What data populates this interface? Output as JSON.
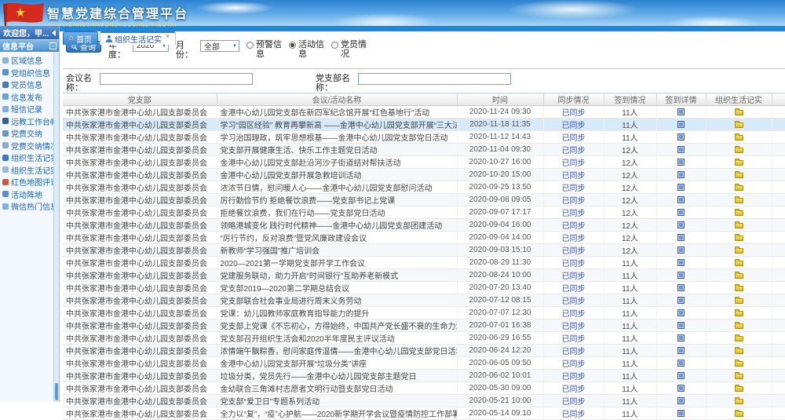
{
  "banner": {
    "title": "智慧党建综合管理平台",
    "subtitle": "ZHIHUIDANGJIANZONGHEGUANLIPINGTAI"
  },
  "colors": {
    "accent_blue": "#1e87d8",
    "link_blue": "#3952b8",
    "flag_red": "#d42b1e",
    "gold_star": "#ffd94a",
    "selected_row": "#d7eaf9"
  },
  "icons": {
    "home_tab_glyph": "⌂",
    "close_tab_glyph": "×",
    "select_arrow_glyph": "▼"
  },
  "sidebar": {
    "welcome": "欢迎您，甲...",
    "section_title": "信息平台",
    "items": [
      {
        "id": "region-info",
        "icon": "region-icon",
        "label": "区域信息"
      },
      {
        "id": "party-org-info",
        "icon": "org-icon",
        "label": "党组织信息"
      },
      {
        "id": "party-member-info",
        "icon": "member-icon",
        "label": "党员信息"
      },
      {
        "id": "info-publish",
        "icon": "publish-icon",
        "label": "信息发布"
      },
      {
        "id": "sms-record",
        "icon": "sms-icon",
        "label": "短信记录"
      },
      {
        "id": "distance-edu-ledger",
        "icon": "education-icon",
        "label": "远教工作台帐"
      },
      {
        "id": "party-fee-pay",
        "icon": "fee-icon",
        "label": "党费交纳"
      },
      {
        "id": "party-fee-status",
        "icon": "fee-status-icon",
        "label": "党费交纳情况"
      },
      {
        "id": "org-life-record",
        "icon": "org-life-icon",
        "label": "组织生活记实"
      },
      {
        "id": "org-life-record-preview",
        "icon": "org-life-preview-icon",
        "label": "组织生活记实预"
      },
      {
        "id": "red-map-comment",
        "icon": "red-map-icon",
        "label": "红色地图评论"
      },
      {
        "id": "activity-site",
        "icon": "activity-site-icon",
        "label": "活动阵地"
      },
      {
        "id": "wechat-hot-info",
        "icon": "wechat-icon",
        "label": "微信热门信息"
      }
    ]
  },
  "tabs": [
    {
      "label": "首页",
      "active": false
    },
    {
      "label": "组织生活记实",
      "active": true
    }
  ],
  "filters": {
    "search_button": "查询",
    "year_label_lines": [
      "年",
      "度："
    ],
    "year_value": "2020",
    "month_label_lines": [
      "月",
      "份："
    ],
    "month_value": "全部",
    "radios": [
      {
        "label_lines": [
          "预警信",
          "息"
        ],
        "checked": false
      },
      {
        "label_lines": [
          "活动信",
          "息"
        ],
        "checked": true
      },
      {
        "label_lines": [
          "党员情",
          "况"
        ],
        "checked": false
      }
    ],
    "meeting_label_lines": [
      "会议名",
      "称："
    ],
    "meeting_name_value": "",
    "branch_label_lines": [
      "党支部名",
      "称："
    ],
    "branch_name_value": ""
  },
  "table": {
    "columns": [
      "党支部",
      "会议/活动名称",
      "时间",
      "同步情况",
      "签到情况",
      "签到详情",
      "组织生活记实"
    ],
    "selected_row_index": 1,
    "rows": [
      {
        "branch": "中共张家港市金港中心幼儿园支部委员会",
        "activity": "金港中心幼儿园党支部在新四军纪念馆开展“红色基地行”活动",
        "time": "2020-11-24 09:30",
        "sync": "已同步",
        "signin": "11人"
      },
      {
        "branch": "中共张家港市金港中心幼儿园支部委员会",
        "activity": "学习“园区经验” 教育再攀新高 ——金港中心幼儿园党支部开展“三大法宝”实境教学活",
        "time": "2020-11-18 11:35",
        "sync": "已同步",
        "signin": "11人"
      },
      {
        "branch": "中共张家港市金港中心幼儿园支部委员会",
        "activity": "学习治国理政，筑牢思想根基——金港中心幼儿园党支部党日活动",
        "time": "2020-11-12 14:43",
        "sync": "已同步",
        "signin": "11人"
      },
      {
        "branch": "中共张家港市金港中心幼儿园支部委员会",
        "activity": "党支部开展健康生活、快乐工作主题党日活动",
        "time": "2020-11-04 09:30",
        "sync": "已同步",
        "signin": "12人"
      },
      {
        "branch": "中共张家港市金港中心幼儿园支部委员会",
        "activity": "金港中心幼儿园党支部赴沿河沙子街道结对帮扶活动",
        "time": "2020-10-27 16:00",
        "sync": "已同步",
        "signin": "12人"
      },
      {
        "branch": "中共张家港市金港中心幼儿园支部委员会",
        "activity": "金港中心幼儿园党支部开展急救培训活动",
        "time": "2020-10-20 15:00",
        "sync": "已同步",
        "signin": "12人"
      },
      {
        "branch": "中共张家港市金港中心幼儿园支部委员会",
        "activity": "浓浓节日情，慰问暖人心——金港中心幼儿园党支部慰问活动",
        "time": "2020-09-25 13:50",
        "sync": "已同步",
        "signin": "12人"
      },
      {
        "branch": "中共张家港市金港中心幼儿园支部委员会",
        "activity": "厉行勤俭节约 拒绝餐饮浪费——党支部书记上党课",
        "time": "2020-09-08 09:05",
        "sync": "已同步",
        "signin": "12人"
      },
      {
        "branch": "中共张家港市金港中心幼儿园支部委员会",
        "activity": "拒绝餐饮浪费，我们在行动——党支部党日活动",
        "time": "2020-09-07 17:17",
        "sync": "已同步",
        "signin": "12人"
      },
      {
        "branch": "中共张家港市金港中心幼儿园支部委员会",
        "activity": "领略港城变化 践行时代精神——金港中心幼儿园党支部团建活动",
        "time": "2020-09-04 16:00",
        "sync": "已同步",
        "signin": "12人"
      },
      {
        "branch": "中共张家港市金港中心幼儿园支部委员会",
        "activity": "“厉行节约，反对浪费”暨党风廉政建设会议",
        "time": "2020-09-04 14:00",
        "sync": "已同步",
        "signin": "12人"
      },
      {
        "branch": "中共张家港市金港中心幼儿园支部委员会",
        "activity": "新教师“学习强国”推广培训会",
        "time": "2020-09-03 15:10",
        "sync": "已同步",
        "signin": "12人"
      },
      {
        "branch": "中共张家港市金港中心幼儿园支部委员会",
        "activity": "2020—2021第一学期党支部开学工作会议",
        "time": "2020-08-29 11:30",
        "sync": "已同步",
        "signin": "11人"
      },
      {
        "branch": "中共张家港市金港中心幼儿园支部委员会",
        "activity": "党建服务联动，助力开启“时间银行”互助养老新模式",
        "time": "2020-08-24 10:00",
        "sync": "已同步",
        "signin": "11人"
      },
      {
        "branch": "中共张家港市金港中心幼儿园支部委员会",
        "activity": "党支部2019—2020第二学期总结会议",
        "time": "2020-07-20 13:40",
        "sync": "已同步",
        "signin": "11人"
      },
      {
        "branch": "中共张家港市金港中心幼儿园支部委员会",
        "activity": "党支部联合社会事业局进行周末义务劳动",
        "time": "2020-07-12 08:15",
        "sync": "已同步",
        "signin": "11人"
      },
      {
        "branch": "中共张家港市金港中心幼儿园支部委员会",
        "activity": "党课：幼儿园教师家庭教育指导能力的提升",
        "time": "2020-07-07 12:30",
        "sync": "已同步",
        "signin": "11人"
      },
      {
        "branch": "中共张家港市金港中心幼儿园支部委员会",
        "activity": "党支部上党课《不忘初心，方得始终，中国共产党长盛不衰的生命力源泉》",
        "time": "2020-07-01 16:38",
        "sync": "已同步",
        "signin": "11人"
      },
      {
        "branch": "中共张家港市金港中心幼儿园支部委员会",
        "activity": "党支部召开组织生活会和2020半年度民主评议活动",
        "time": "2020-06-29 16:55",
        "sync": "已同步",
        "signin": "11人"
      },
      {
        "branch": "中共张家港市金港中心幼儿园支部委员会",
        "activity": "浓情端午飘粽香，慰问家庭传温情——金港中心幼儿园党支部党日活动",
        "time": "2020-06-24 12:20",
        "sync": "已同步",
        "signin": "11人"
      },
      {
        "branch": "中共张家港市金港中心幼儿园支部委员会",
        "activity": "金港中心幼儿园党支部开展“垃圾分类”讲座",
        "time": "2020-06-05 09:50",
        "sync": "已同步",
        "signin": "11人"
      },
      {
        "branch": "中共张家港市金港中心幼儿园支部委员会",
        "activity": "垃圾分类，党员先行——金港中心幼儿园党支部主题党日",
        "time": "2020-06-02 10:01",
        "sync": "已同步",
        "signin": "11人"
      },
      {
        "branch": "中共张家港市金港中心幼儿园支部委员会",
        "activity": "金幼联合三角滩村志愿者文明行动暨支部党日活动",
        "time": "2020-05-30 09:00",
        "sync": "已同步",
        "signin": "11人"
      },
      {
        "branch": "中共张家港市金港中心幼儿园支部委员会",
        "activity": "党支部“爱卫日”专题系列活动",
        "time": "2020-05-21 10:00",
        "sync": "已同步",
        "signin": "11人"
      },
      {
        "branch": "中共张家港市金港中心幼儿园支部委员会",
        "activity": "全力以“复”，“疫”心护航——2020新学期开学会议暨疫情防控工作部署大会",
        "time": "2020-05-14 09:10",
        "sync": "已同步",
        "signin": "11人"
      }
    ]
  }
}
